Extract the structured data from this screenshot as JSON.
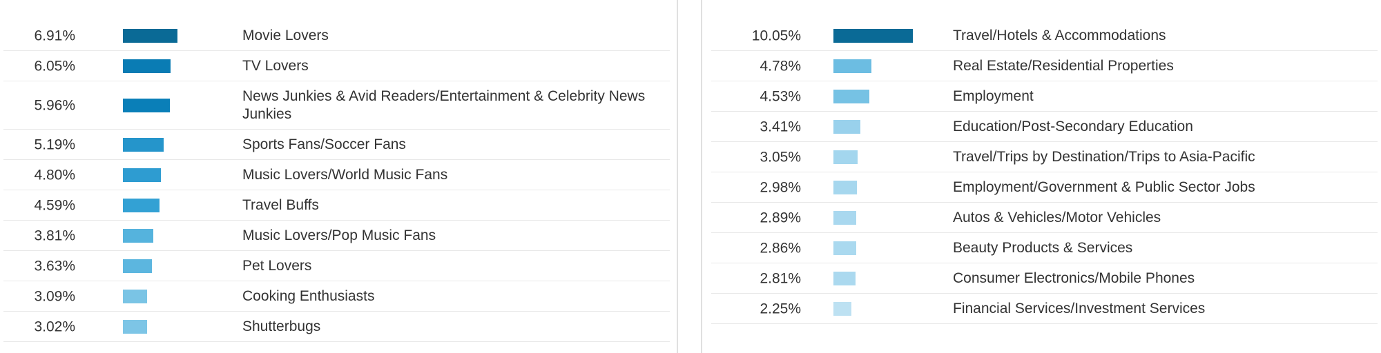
{
  "chart_data": [
    {
      "type": "bar",
      "orientation": "horizontal",
      "title": "",
      "xlabel": "",
      "ylabel": "",
      "grid": false,
      "legend": "none",
      "max_value": 10.05,
      "items": [
        {
          "pct": "6.91%",
          "value": 6.91,
          "label": "Movie Lovers",
          "color": "#0a6a96"
        },
        {
          "pct": "6.05%",
          "value": 6.05,
          "label": "TV Lovers",
          "color": "#0a7cb4"
        },
        {
          "pct": "5.96%",
          "value": 5.96,
          "label": "News Junkies & Avid Readers/Entertainment & Celebrity News Junkies",
          "color": "#0a7fb8"
        },
        {
          "pct": "5.19%",
          "value": 5.19,
          "label": "Sports Fans/Soccer Fans",
          "color": "#2595cb"
        },
        {
          "pct": "4.80%",
          "value": 4.8,
          "label": "Music Lovers/World Music Fans",
          "color": "#2e9cd1"
        },
        {
          "pct": "4.59%",
          "value": 4.59,
          "label": "Travel Buffs",
          "color": "#33a1d4"
        },
        {
          "pct": "3.81%",
          "value": 3.81,
          "label": "Music Lovers/Pop Music Fans",
          "color": "#55b3dd"
        },
        {
          "pct": "3.63%",
          "value": 3.63,
          "label": "Pet Lovers",
          "color": "#5cb6df"
        },
        {
          "pct": "3.09%",
          "value": 3.09,
          "label": "Cooking Enthusiasts",
          "color": "#7ac4e5"
        },
        {
          "pct": "3.02%",
          "value": 3.02,
          "label": "Shutterbugs",
          "color": "#7dc5e6"
        }
      ]
    },
    {
      "type": "bar",
      "orientation": "horizontal",
      "title": "",
      "xlabel": "",
      "ylabel": "",
      "grid": false,
      "legend": "none",
      "max_value": 10.05,
      "items": [
        {
          "pct": "10.05%",
          "value": 10.05,
          "label": "Travel/Hotels & Accommodations",
          "color": "#0a6a96"
        },
        {
          "pct": "4.78%",
          "value": 4.78,
          "label": "Real Estate/Residential Properties",
          "color": "#6cbde2"
        },
        {
          "pct": "4.53%",
          "value": 4.53,
          "label": "Employment",
          "color": "#76c2e4"
        },
        {
          "pct": "3.41%",
          "value": 3.41,
          "label": "Education/Post-Secondary Education",
          "color": "#99d1ec"
        },
        {
          "pct": "3.05%",
          "value": 3.05,
          "label": "Travel/Trips by Destination/Trips to Asia-Pacific",
          "color": "#a3d6ee"
        },
        {
          "pct": "2.98%",
          "value": 2.98,
          "label": "Employment/Government & Public Sector Jobs",
          "color": "#a6d7ee"
        },
        {
          "pct": "2.89%",
          "value": 2.89,
          "label": "Autos & Vehicles/Motor Vehicles",
          "color": "#a9d8ef"
        },
        {
          "pct": "2.86%",
          "value": 2.86,
          "label": "Beauty Products & Services",
          "color": "#aad9ef"
        },
        {
          "pct": "2.81%",
          "value": 2.81,
          "label": "Consumer Electronics/Mobile Phones",
          "color": "#abd9ef"
        },
        {
          "pct": "2.25%",
          "value": 2.25,
          "label": "Financial Services/Investment Services",
          "color": "#bde1f2"
        }
      ]
    }
  ]
}
